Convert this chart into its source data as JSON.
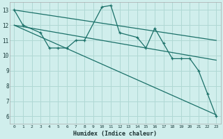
{
  "xlabel": "Humidex (Indice chaleur)",
  "background_color": "#d0eeec",
  "grid_color": "#b0d8d4",
  "line_color": "#1a7068",
  "xlim": [
    -0.5,
    23.5
  ],
  "ylim": [
    5.5,
    13.5
  ],
  "xticks": [
    0,
    1,
    2,
    3,
    4,
    5,
    6,
    7,
    8,
    9,
    10,
    11,
    12,
    13,
    14,
    15,
    16,
    17,
    18,
    19,
    20,
    21,
    22,
    23
  ],
  "yticks": [
    6,
    7,
    8,
    9,
    10,
    11,
    12,
    13
  ],
  "main_x": [
    0,
    1,
    3,
    4,
    5,
    6,
    7,
    8,
    10,
    11,
    12,
    14,
    15,
    16,
    17,
    18,
    19,
    20,
    21,
    22,
    23
  ],
  "main_y": [
    13,
    12,
    11.5,
    10.5,
    10.5,
    10.5,
    11.0,
    11.0,
    13.2,
    13.3,
    11.5,
    11.2,
    10.5,
    11.8,
    10.8,
    9.8,
    9.8,
    9.8,
    9.0,
    7.5,
    6.0
  ],
  "line1_x": [
    0,
    23
  ],
  "line1_y": [
    13.0,
    11.0
  ],
  "line2_x": [
    0,
    23
  ],
  "line2_y": [
    12.0,
    9.7
  ],
  "line3_x": [
    0,
    23
  ],
  "line3_y": [
    12.0,
    6.1
  ]
}
